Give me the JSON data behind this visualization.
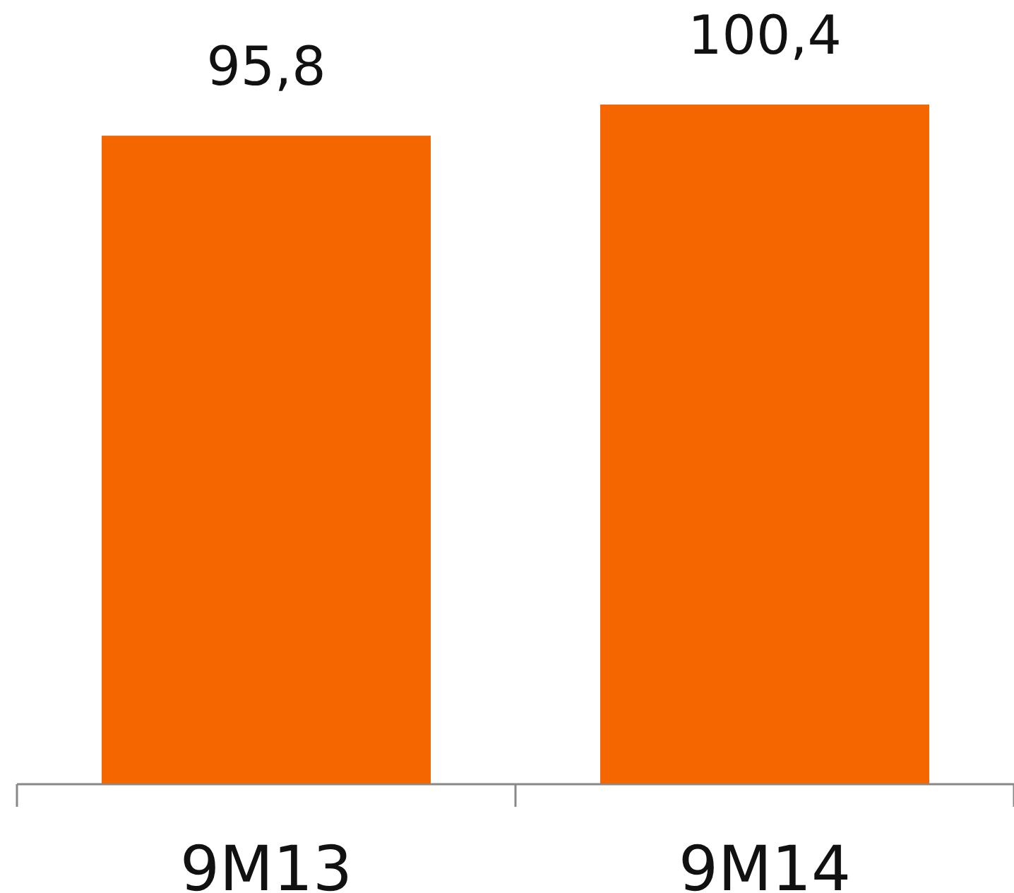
{
  "chart_data": {
    "type": "bar",
    "categories": [
      "9M13",
      "9M14"
    ],
    "values": [
      95.8,
      100.4
    ],
    "value_labels": [
      "95,8",
      "100,4"
    ],
    "color": "#f56600"
  }
}
